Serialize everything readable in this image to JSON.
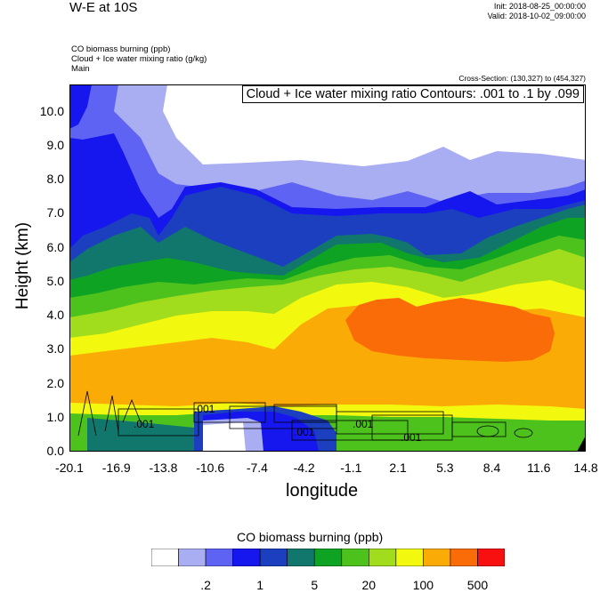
{
  "header": {
    "title": "W-E at 10S",
    "init": "Init: 2018-08-25_00:00:00",
    "valid": "Valid: 2018-10-02_09:00:00",
    "fields": [
      "CO biomass burning   (ppb)",
      "Cloud + Ice water mixing ratio   (g/kg)",
      "Main"
    ],
    "cross_section": "Cross-Section: (130,327) to (454,327)"
  },
  "chart_data": {
    "type": "heatmap",
    "title": "W-E at 10S",
    "xlabel": "longitude",
    "ylabel": "Height (km)",
    "x_ticks": [
      "-20.1",
      "-16.9",
      "-13.8",
      "-10.6",
      "-7.4",
      "-4.2",
      "-1.1",
      "2.1",
      "5.3",
      "8.4",
      "11.6",
      "14.8"
    ],
    "y_ticks": [
      "0.0",
      "1.0",
      "2.0",
      "3.0",
      "4.0",
      "5.0",
      "6.0",
      "7.0",
      "8.0",
      "9.0",
      "10.0"
    ],
    "xlim": [
      -20.1,
      14.8
    ],
    "ylim": [
      0.0,
      10.8
    ],
    "contour_annotation": "Cloud + Ice water mixing ratio Contours: .001 to .1 by .099",
    "contour_labels": [
      ".001",
      ".001",
      ".001",
      ".001",
      ".001"
    ],
    "colorbar": {
      "title": "CO biomass burning  (ppb)",
      "colors": [
        "#ffffff",
        "#a9aef3",
        "#5f63f4",
        "#1616ee",
        "#1b3fbf",
        "#11776c",
        "#0fa323",
        "#4ec21c",
        "#a1dd1c",
        "#f3f90e",
        "#fbab06",
        "#fa6c08",
        "#f80f0f"
      ],
      "labels": [
        ".2",
        "1",
        "5",
        "20",
        "100",
        "500"
      ]
    },
    "grid": false,
    "legend": "bottom"
  }
}
